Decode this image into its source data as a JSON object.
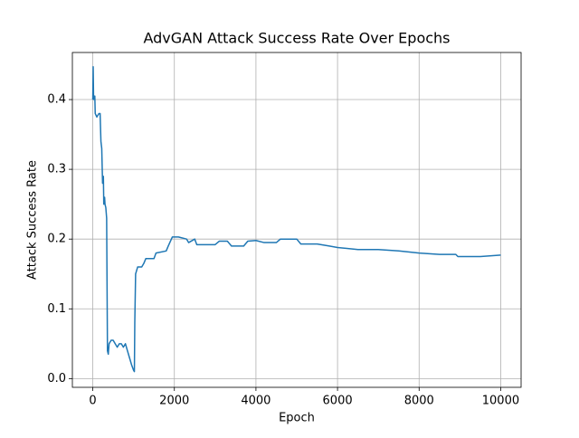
{
  "chart_data": {
    "type": "line",
    "title": "AdvGAN Attack Success Rate Over Epochs",
    "xlabel": "Epoch",
    "ylabel": "Attack Success Rate",
    "color": "#1f77b4",
    "grid": true,
    "xlim": [
      -500,
      10500
    ],
    "xticks": [
      0,
      2000,
      4000,
      6000,
      8000,
      10000
    ],
    "ylim": [
      -0.0125,
      0.4675
    ],
    "yticks": [
      {
        "value": 0,
        "label": "0.0"
      },
      0.1,
      0.2,
      0.3,
      0.4
    ],
    "x": [
      0,
      10,
      20,
      50,
      60,
      100,
      150,
      180,
      200,
      220,
      240,
      260,
      270,
      290,
      300,
      320,
      340,
      360,
      380,
      400,
      450,
      500,
      550,
      600,
      650,
      700,
      750,
      800,
      850,
      900,
      950,
      1000,
      1020,
      1030,
      1050,
      1100,
      1200,
      1250,
      1300,
      1500,
      1550,
      1800,
      1850,
      1950,
      2100,
      2300,
      2350,
      2500,
      2550,
      3000,
      3100,
      3300,
      3400,
      3700,
      3800,
      4000,
      4200,
      4500,
      4600,
      5000,
      5100,
      5500,
      5800,
      6000,
      6500,
      7000,
      7500,
      8000,
      8500,
      8900,
      8950,
      9500,
      10000
    ],
    "values": [
      0.4,
      0.447,
      0.4,
      0.405,
      0.38,
      0.375,
      0.38,
      0.38,
      0.34,
      0.33,
      0.28,
      0.29,
      0.25,
      0.26,
      0.25,
      0.245,
      0.23,
      0.04,
      0.035,
      0.05,
      0.055,
      0.055,
      0.05,
      0.045,
      0.05,
      0.05,
      0.045,
      0.05,
      0.04,
      0.03,
      0.02,
      0.012,
      0.01,
      0.08,
      0.15,
      0.16,
      0.16,
      0.165,
      0.172,
      0.172,
      0.18,
      0.183,
      0.19,
      0.203,
      0.203,
      0.2,
      0.195,
      0.2,
      0.192,
      0.192,
      0.197,
      0.197,
      0.19,
      0.19,
      0.197,
      0.198,
      0.195,
      0.195,
      0.2,
      0.2,
      0.193,
      0.193,
      0.19,
      0.188,
      0.185,
      0.185,
      0.183,
      0.18,
      0.178,
      0.178,
      0.175,
      0.175,
      0.177
    ]
  }
}
